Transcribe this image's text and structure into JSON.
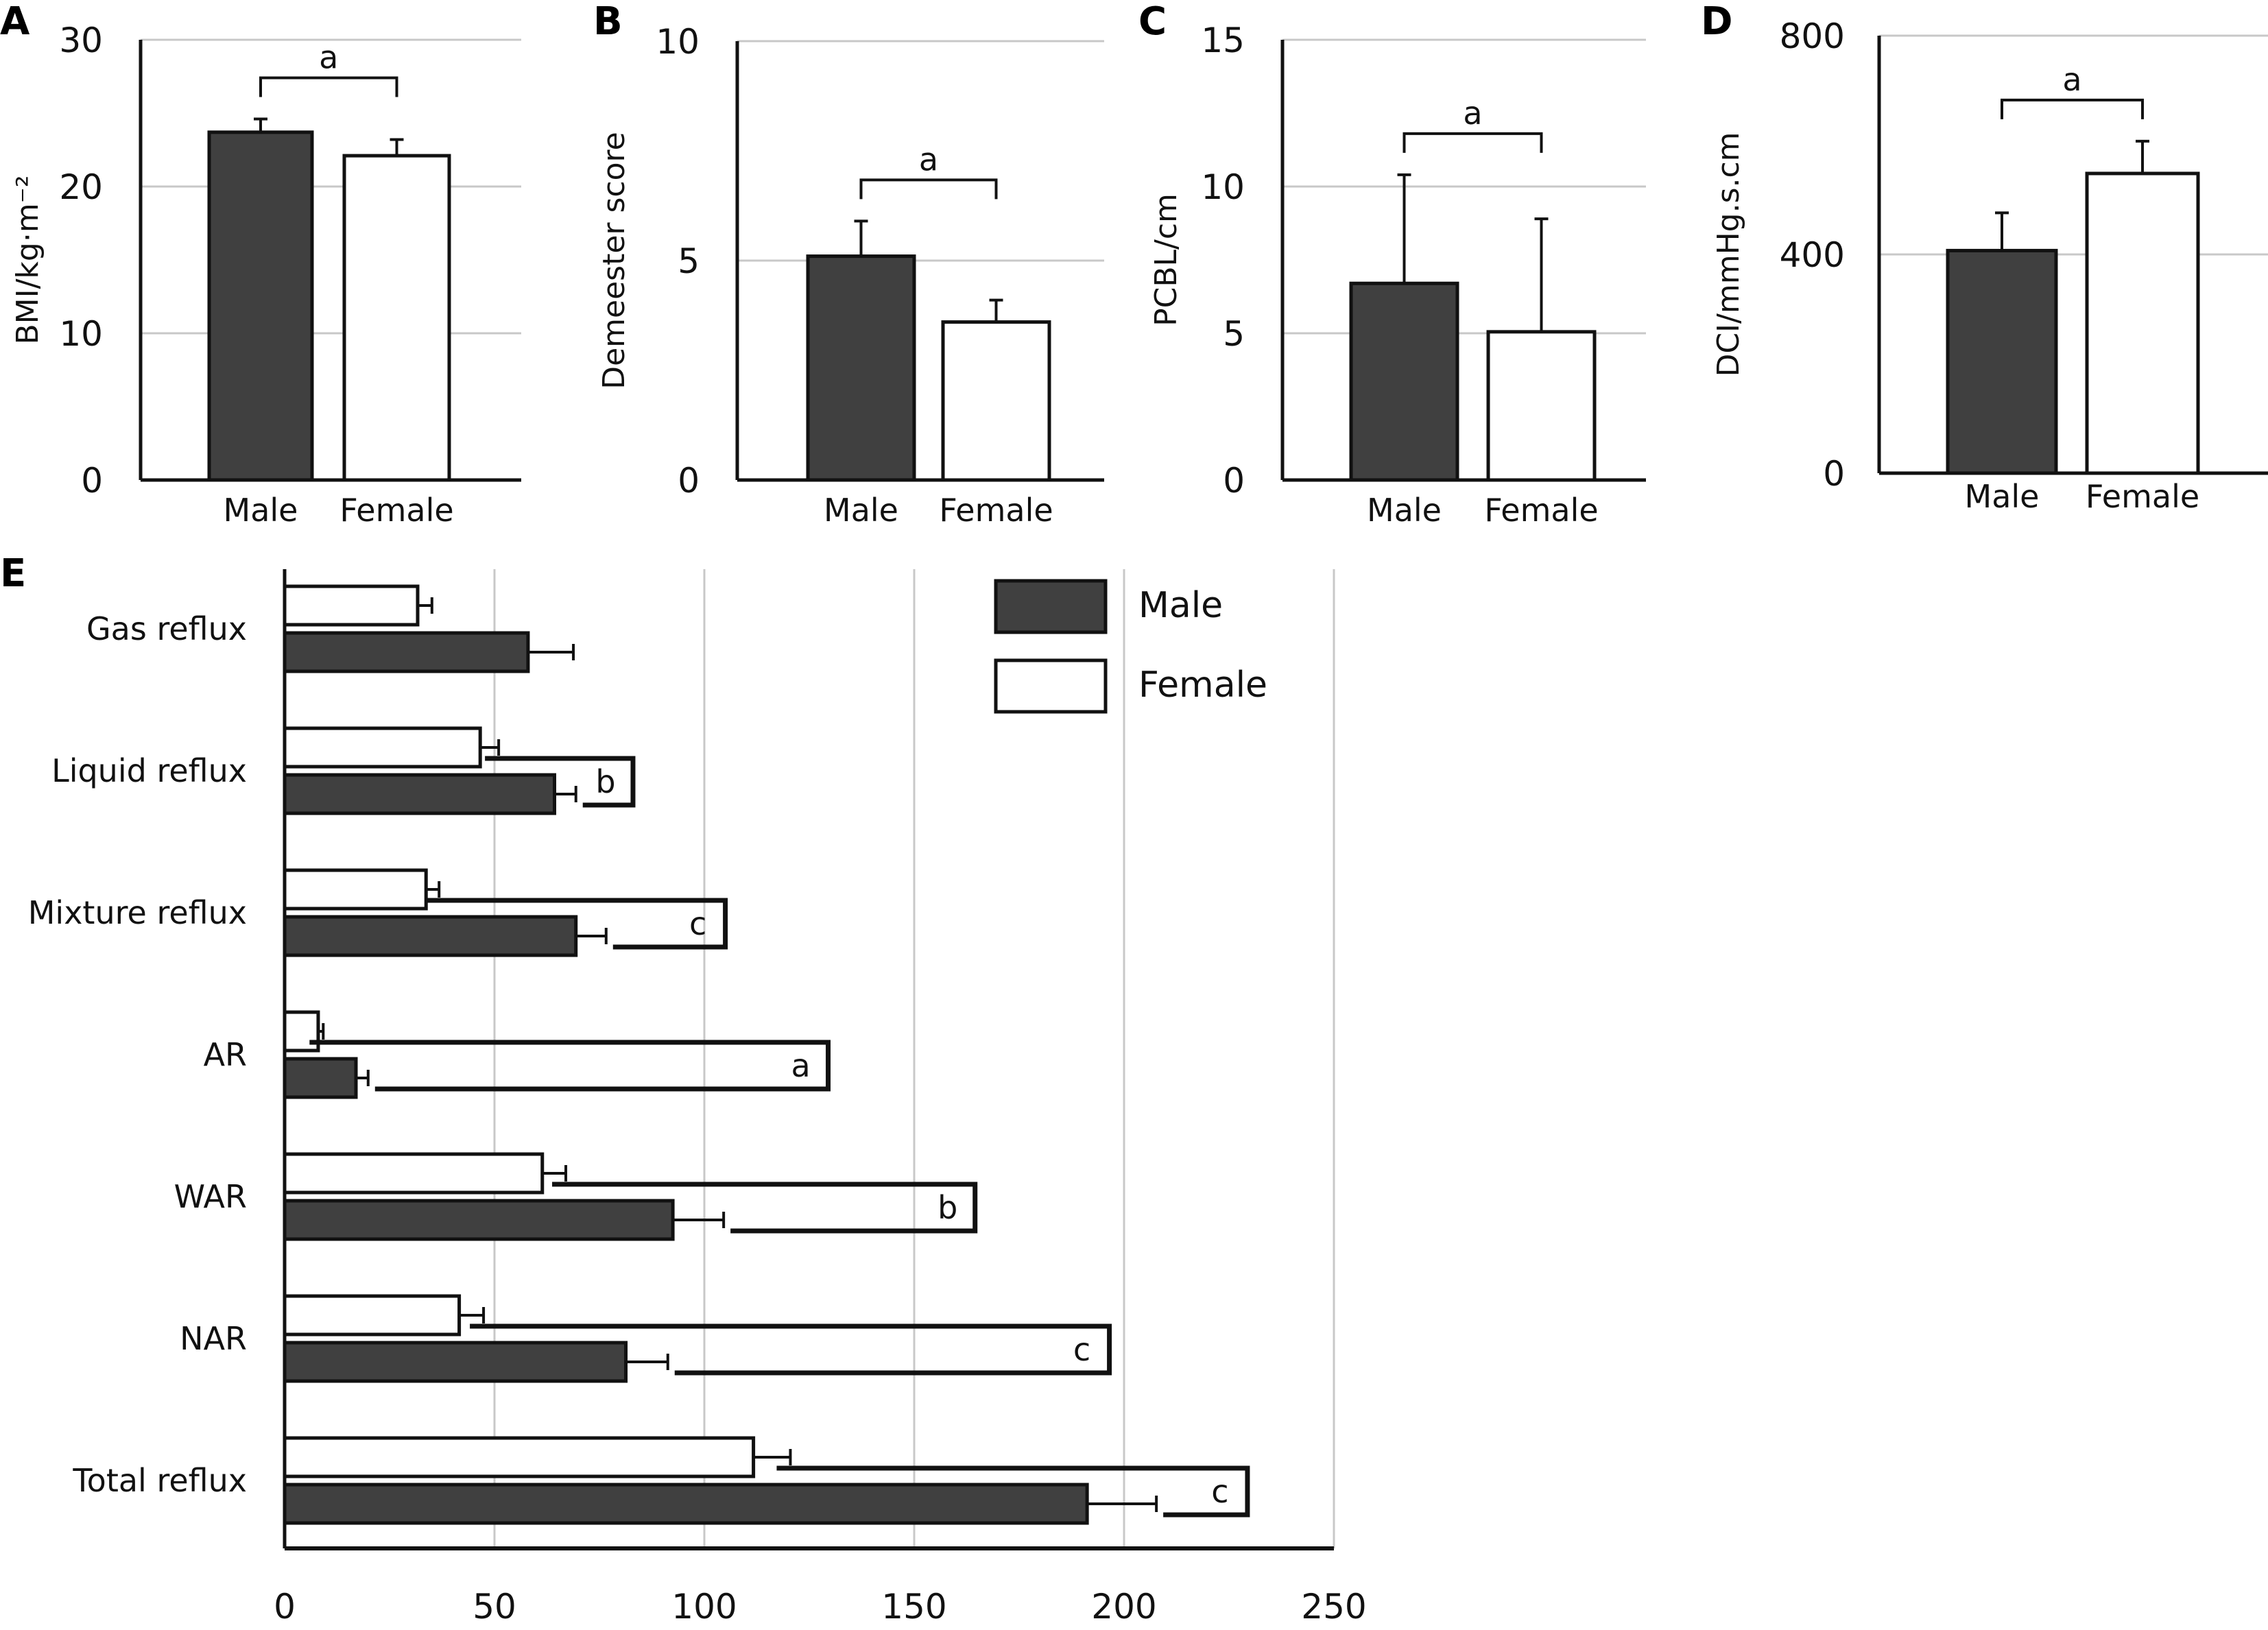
{
  "chart_data": [
    {
      "panel": "A",
      "type": "bar",
      "categories": [
        "Male",
        "Female"
      ],
      "values": [
        23.7,
        22.1
      ],
      "error_upper": [
        24.6,
        23.2
      ],
      "ylabel": "BMI/kg·m⁻²",
      "ylim": [
        0,
        30
      ],
      "yticks": [
        "0",
        "10",
        "20",
        "30"
      ],
      "ytick_values": [
        0,
        10,
        20,
        30
      ],
      "grid": true,
      "significance": "a",
      "fills": [
        "#404040",
        "#ffffff"
      ]
    },
    {
      "panel": "B",
      "type": "bar",
      "categories": [
        "Male",
        "Female"
      ],
      "values": [
        5.1,
        3.6
      ],
      "error_upper": [
        5.9,
        4.1
      ],
      "ylabel": "Demeester score",
      "ylim": [
        0,
        10
      ],
      "yticks": [
        "0",
        "5",
        "10"
      ],
      "ytick_values": [
        0,
        5,
        10
      ],
      "grid": true,
      "significance": "a",
      "fills": [
        "#404040",
        "#ffffff"
      ]
    },
    {
      "panel": "C",
      "type": "bar",
      "categories": [
        "Male",
        "Female"
      ],
      "values": [
        6.7,
        5.05
      ],
      "error_upper": [
        10.4,
        8.9
      ],
      "ylabel": "PCBL/cm",
      "ylim": [
        0,
        15
      ],
      "yticks": [
        "0",
        "5",
        "10",
        "15"
      ],
      "ytick_values": [
        0,
        5,
        10,
        15
      ],
      "grid": true,
      "significance": "a",
      "fills": [
        "#404040",
        "#ffffff"
      ]
    },
    {
      "panel": "D",
      "type": "bar",
      "categories": [
        "Male",
        "Female"
      ],
      "values": [
        407,
        548
      ],
      "error_upper": [
        476,
        607
      ],
      "ylabel": "DCI/mmHg.s.cm",
      "ylim": [
        0,
        800
      ],
      "yticks": [
        "0",
        "400",
        "800"
      ],
      "ytick_values": [
        0,
        400,
        800
      ],
      "grid": true,
      "significance": "a",
      "fills": [
        "#404040",
        "#ffffff"
      ]
    },
    {
      "panel": "E",
      "type": "bar",
      "orientation": "horizontal",
      "categories": [
        "Gas reflux",
        "Liquid reflux",
        "Mixture reflux",
        "AR",
        "WAR",
        "NAR",
        "Total reflux"
      ],
      "series": [
        {
          "name": "Male",
          "color": "#404040",
          "values": [
            58,
            64.3,
            69.4,
            17,
            92.5,
            81.3,
            191.2
          ],
          "error_upper": [
            68.8,
            69.4,
            76.6,
            19.9,
            104.6,
            91.3,
            207.7
          ]
        },
        {
          "name": "Female",
          "color": "#ffffff",
          "values": [
            31.7,
            46.6,
            33.7,
            8.0,
            61.4,
            41.6,
            111.7
          ],
          "error_upper": [
            35.1,
            51.0,
            36.8,
            9.2,
            67.0,
            47.4,
            120.5
          ]
        }
      ],
      "significance": [
        "",
        "b",
        "c",
        "a",
        "b",
        "c",
        "c"
      ],
      "bracket_extent": [
        null,
        83,
        105,
        129.5,
        164.5,
        196.5,
        229.4
      ],
      "xlim": [
        0,
        250
      ],
      "xticks": [
        "0",
        "50",
        "100",
        "150",
        "200",
        "250"
      ],
      "xtick_values": [
        0,
        50,
        100,
        150,
        200,
        250
      ],
      "grid": true,
      "legend": [
        "Male",
        "Female"
      ],
      "legend_position": "top-right"
    }
  ]
}
